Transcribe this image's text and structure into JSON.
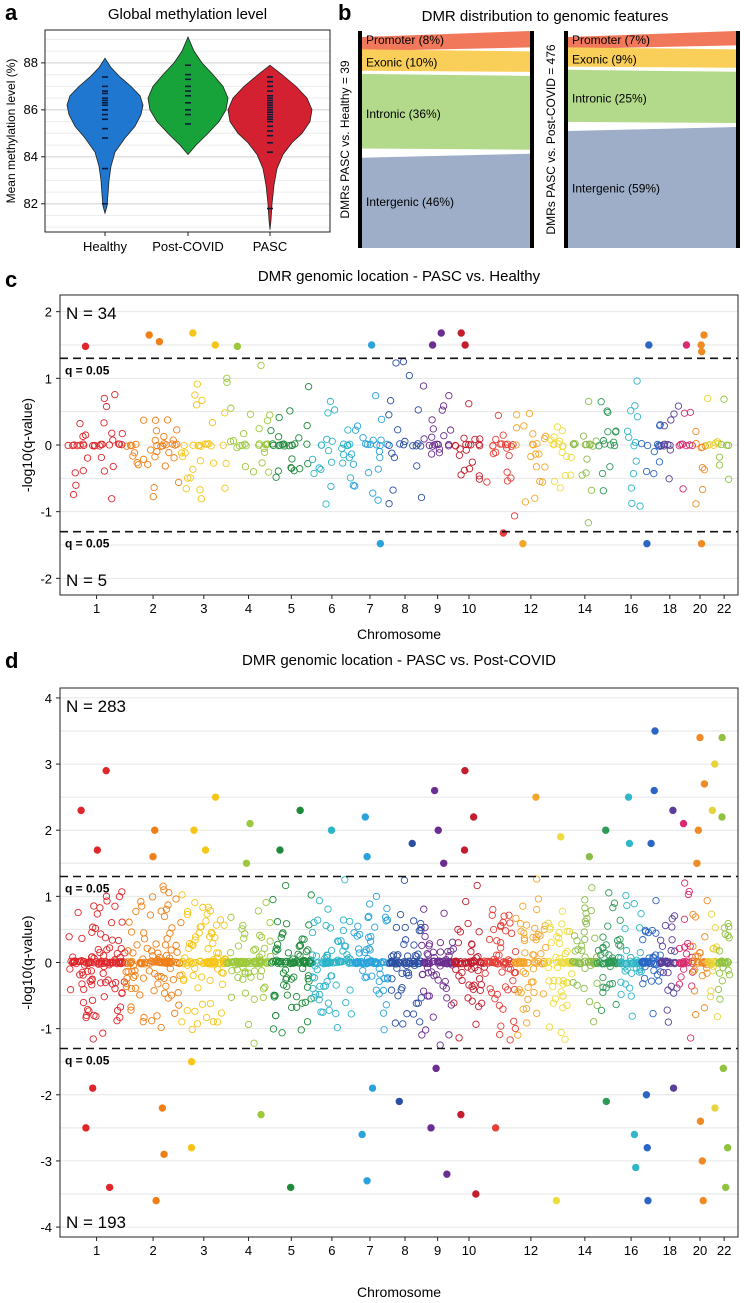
{
  "panels": {
    "a": {
      "letter": "a"
    },
    "b": {
      "letter": "b"
    },
    "c": {
      "letter": "c"
    },
    "d": {
      "letter": "d"
    }
  },
  "chart_data": [
    {
      "id": "a",
      "type": "violin",
      "title": "Global methylation level",
      "ylabel": "Mean methylation level (%)",
      "ylim": [
        80.8,
        89.4
      ],
      "yticks": [
        82,
        84,
        86,
        88
      ],
      "grid": true,
      "categories": [
        "Healthy",
        "Post-COVID",
        "PASC"
      ],
      "colors": [
        "#1f77d0",
        "#18a23a",
        "#d42132"
      ],
      "series": [
        {
          "category": "Healthy",
          "values": [
            82.0,
            83.5,
            84.8,
            85.2,
            85.6,
            85.8,
            86.0,
            86.0,
            86.2,
            86.3,
            86.4,
            86.5,
            86.7,
            86.8,
            87.0,
            87.4
          ]
        },
        {
          "category": "Post-COVID",
          "values": [
            85.4,
            85.8,
            86.0,
            86.3,
            86.6,
            86.8,
            87.0,
            87.3,
            87.5,
            87.9
          ]
        },
        {
          "category": "PASC",
          "values": [
            81.8,
            84.2,
            84.6,
            84.9,
            85.1,
            85.3,
            85.5,
            85.6,
            85.7,
            85.8,
            85.9,
            86.0,
            86.1,
            86.2,
            86.3,
            86.4,
            86.5,
            86.6,
            86.8,
            87.0,
            87.2,
            87.4
          ]
        }
      ]
    },
    {
      "id": "b",
      "type": "stacked-bar",
      "title": "DMR distribution to genomic features",
      "categories": [
        "Promoter",
        "Exonic",
        "Intronic",
        "Intergenic"
      ],
      "colors": [
        "#f2785b",
        "#f9cf5a",
        "#b3d98a",
        "#9eaec8"
      ],
      "series": [
        {
          "name": "DMRs PASC vs. Healthy = 39",
          "values": [
            8,
            10,
            36,
            46
          ],
          "labels": [
            "Promoter (8%)",
            "Exonic (10%)",
            "Intronic (36%)",
            "Intergenic (46%)"
          ]
        },
        {
          "name": "DMRs PASC vs. Post-COVID = 476",
          "values": [
            7,
            9,
            25,
            59
          ],
          "labels": [
            "Promoter (7%)",
            "Exonic (9%)",
            "Intronic (25%)",
            "Intergenic (59%)"
          ]
        }
      ]
    },
    {
      "id": "c",
      "type": "scatter",
      "title": "DMR genomic location - PASC vs. Healthy",
      "xlabel": "Chromosome",
      "ylabel": "-log10(q-value)",
      "ylim": [
        -2.25,
        2.25
      ],
      "yticks": [
        -2,
        -1,
        0,
        1,
        2
      ],
      "xticks": [
        "1",
        "2",
        "3",
        "4",
        "5",
        "6",
        "7",
        "8",
        "9",
        "10",
        "12",
        "14",
        "16",
        "18",
        "20",
        "22"
      ],
      "threshold": 1.3,
      "threshold_label": "q = 0.05",
      "n_up": "N = 34",
      "n_down": "N = 5",
      "grid": true,
      "significant_up": [
        [
          1,
          1.48
        ],
        [
          2,
          1.65
        ],
        [
          2,
          1.55
        ],
        [
          3,
          1.68
        ],
        [
          3,
          1.5
        ],
        [
          4,
          1.48
        ],
        [
          7,
          1.5
        ],
        [
          9,
          1.68
        ],
        [
          9,
          1.5
        ],
        [
          10,
          1.68
        ],
        [
          10,
          1.5
        ],
        [
          17,
          1.5
        ],
        [
          19,
          1.5
        ],
        [
          20,
          1.65
        ],
        [
          20,
          1.5
        ],
        [
          20,
          1.4
        ]
      ],
      "significant_down": [
        [
          7,
          -1.48
        ],
        [
          11,
          -1.32
        ],
        [
          12,
          -1.48
        ],
        [
          17,
          -1.48
        ],
        [
          20,
          -1.48
        ]
      ]
    },
    {
      "id": "d",
      "type": "scatter",
      "title": "DMR genomic location - PASC vs. Post-COVID",
      "xlabel": "Chromosome",
      "ylabel": "-log10(q-value)",
      "ylim": [
        -4.15,
        4.15
      ],
      "yticks": [
        -4,
        -3,
        -2,
        -1,
        0,
        1,
        2,
        3,
        4
      ],
      "xticks": [
        "1",
        "2",
        "3",
        "4",
        "5",
        "6",
        "7",
        "8",
        "9",
        "10",
        "12",
        "14",
        "16",
        "18",
        "20",
        "22"
      ],
      "threshold": 1.3,
      "threshold_label": "q = 0.05",
      "n_up": "N = 283",
      "n_down": "N = 193",
      "grid": true,
      "significant_up": [
        [
          1,
          2.9
        ],
        [
          1,
          2.3
        ],
        [
          1,
          1.7
        ],
        [
          2,
          2.0
        ],
        [
          2,
          1.6
        ],
        [
          3,
          2.5
        ],
        [
          3,
          2.0
        ],
        [
          3,
          1.7
        ],
        [
          4,
          2.1
        ],
        [
          4,
          1.5
        ],
        [
          5,
          2.3
        ],
        [
          5,
          1.7
        ],
        [
          6,
          2.0
        ],
        [
          7,
          2.2
        ],
        [
          7,
          1.6
        ],
        [
          8,
          1.8
        ],
        [
          9,
          2.6
        ],
        [
          9,
          2.0
        ],
        [
          9,
          1.5
        ],
        [
          10,
          2.9
        ],
        [
          10,
          2.2
        ],
        [
          10,
          1.7
        ],
        [
          12,
          2.5
        ],
        [
          13,
          1.9
        ],
        [
          14,
          1.6
        ],
        [
          15,
          2.0
        ],
        [
          16,
          2.5
        ],
        [
          16,
          1.8
        ],
        [
          17,
          3.5
        ],
        [
          17,
          2.6
        ],
        [
          17,
          1.8
        ],
        [
          18,
          2.3
        ],
        [
          19,
          2.1
        ],
        [
          20,
          3.4
        ],
        [
          20,
          2.7
        ],
        [
          20,
          2.0
        ],
        [
          20,
          1.5
        ],
        [
          21,
          3.0
        ],
        [
          21,
          2.3
        ],
        [
          22,
          3.4
        ],
        [
          22,
          2.2
        ]
      ],
      "significant_down": [
        [
          1,
          -2.5
        ],
        [
          1,
          -3.4
        ],
        [
          1,
          -1.9
        ],
        [
          2,
          -2.2
        ],
        [
          2,
          -2.9
        ],
        [
          2,
          -3.6
        ],
        [
          3,
          -1.5
        ],
        [
          3,
          -2.8
        ],
        [
          4,
          -2.3
        ],
        [
          5,
          -3.4
        ],
        [
          7,
          -1.9
        ],
        [
          7,
          -2.6
        ],
        [
          7,
          -3.3
        ],
        [
          8,
          -2.1
        ],
        [
          9,
          -2.5
        ],
        [
          9,
          -3.2
        ],
        [
          9,
          -1.6
        ],
        [
          10,
          -2.3
        ],
        [
          10,
          -3.5
        ],
        [
          11,
          -2.5
        ],
        [
          13,
          -3.6
        ],
        [
          15,
          -2.1
        ],
        [
          16,
          -2.6
        ],
        [
          16,
          -3.1
        ],
        [
          17,
          -2.0
        ],
        [
          17,
          -2.8
        ],
        [
          17,
          -3.6
        ],
        [
          18,
          -1.9
        ],
        [
          20,
          -2.4
        ],
        [
          20,
          -3.0
        ],
        [
          20,
          -3.6
        ],
        [
          21,
          -2.2
        ],
        [
          22,
          -1.6
        ],
        [
          22,
          -2.8
        ],
        [
          22,
          -3.4
        ]
      ]
    }
  ]
}
